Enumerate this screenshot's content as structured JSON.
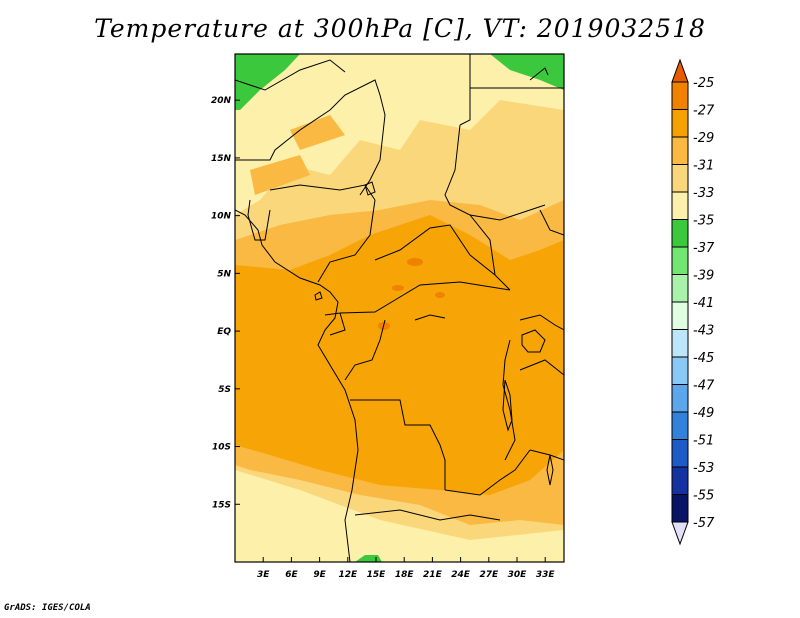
{
  "title": "Temperature at 300hPa [C], VT: 2019032518",
  "credit": "GrADS: IGES/COLA",
  "map": {
    "lon_range": [
      0,
      35
    ],
    "lat_range": [
      -20,
      24
    ],
    "lon_ticks": [
      {
        "v": 3,
        "label": "3E"
      },
      {
        "v": 6,
        "label": "6E"
      },
      {
        "v": 9,
        "label": "9E"
      },
      {
        "v": 12,
        "label": "12E"
      },
      {
        "v": 15,
        "label": "15E"
      },
      {
        "v": 18,
        "label": "18E"
      },
      {
        "v": 21,
        "label": "21E"
      },
      {
        "v": 24,
        "label": "24E"
      },
      {
        "v": 27,
        "label": "27E"
      },
      {
        "v": 30,
        "label": "30E"
      },
      {
        "v": 33,
        "label": "33E"
      }
    ],
    "lat_ticks": [
      {
        "v": 20,
        "label": "20N"
      },
      {
        "v": 15,
        "label": "15N"
      },
      {
        "v": 10,
        "label": "10N"
      },
      {
        "v": 5,
        "label": "5N"
      },
      {
        "v": 0,
        "label": "EQ"
      },
      {
        "v": -5,
        "label": "5S"
      },
      {
        "v": -10,
        "label": "10S"
      },
      {
        "v": -15,
        "label": "15S"
      }
    ]
  },
  "colorbar": {
    "labels": [
      "-25",
      "-27",
      "-29",
      "-31",
      "-33",
      "-35",
      "-37",
      "-39",
      "-41",
      "-43",
      "-45",
      "-47",
      "-49",
      "-51",
      "-53",
      "-55",
      "-57"
    ],
    "colors": {
      "c_m25": "#e85a00",
      "c_m27": "#f08200",
      "c_m29": "#f5a200",
      "c_m31": "#f9b942",
      "c_m33": "#fbd77c",
      "c_m35": "#fdf0aa",
      "c_m37": "#3cc83c",
      "c_m39": "#72e672",
      "c_m41": "#a9f2a9",
      "c_m43": "#e1fde1",
      "c_m45": "#bee6fa",
      "c_m47": "#8ac9f5",
      "c_m49": "#5ca6ec",
      "c_m51": "#3282dc",
      "c_m53": "#1e5ac8",
      "c_m55": "#1432a0",
      "c_m57": "#0a1464",
      "c_under": "#e0e0f8"
    }
  }
}
